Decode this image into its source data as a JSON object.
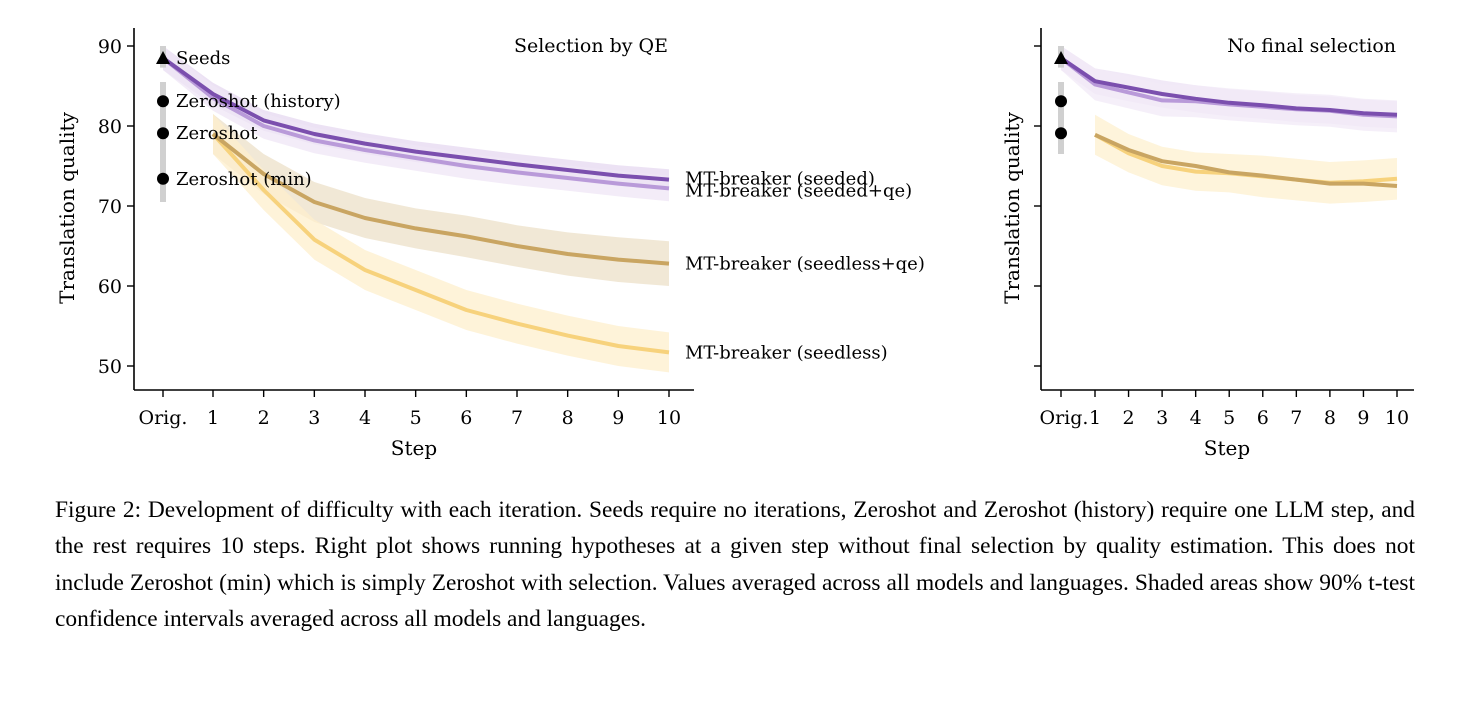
{
  "chart_data": [
    {
      "type": "line",
      "panel": "left",
      "title": "Selection by QE",
      "xlabel": "Step",
      "ylabel": "Translation quality",
      "x": [
        "Orig.",
        "1",
        "2",
        "3",
        "4",
        "5",
        "6",
        "7",
        "8",
        "9",
        "10"
      ],
      "yticks": [
        50,
        60,
        70,
        80,
        90
      ],
      "ylim": [
        47,
        92
      ],
      "grid": false,
      "reference_points": [
        {
          "name": "Seeds",
          "marker": "triangle",
          "value": 88.5,
          "ci": [
            87.3,
            90.0
          ]
        },
        {
          "name": "Zeroshot (history)",
          "marker": "circle",
          "value": 83.1,
          "ci": [
            81.0,
            85.5
          ]
        },
        {
          "name": "Zeroshot",
          "marker": "circle",
          "value": 79.1,
          "ci": [
            76.5,
            81.0
          ]
        },
        {
          "name": "Zeroshot (min)",
          "marker": "circle",
          "value": 73.4,
          "ci": [
            70.5,
            77.0
          ]
        }
      ],
      "series": [
        {
          "name": "MT-breaker (seeded)",
          "color": "#7b4fae",
          "band_color": "#e6d8f0",
          "x": [
            "Orig.",
            "1",
            "2",
            "3",
            "4",
            "5",
            "6",
            "7",
            "8",
            "9",
            "10"
          ],
          "values": [
            88.5,
            84.0,
            80.7,
            79.0,
            77.8,
            76.8,
            76.0,
            75.2,
            74.5,
            73.8,
            73.3
          ],
          "ci_halfwidth": [
            1.5,
            1.4,
            1.3,
            1.3,
            1.3,
            1.3,
            1.3,
            1.3,
            1.3,
            1.3,
            1.3
          ]
        },
        {
          "name": "MT-breaker (seeded+qe)",
          "color": "#b99ad9",
          "band_color": "#efe6f6",
          "x": [
            "Orig.",
            "1",
            "2",
            "3",
            "4",
            "5",
            "6",
            "7",
            "8",
            "9",
            "10"
          ],
          "values": [
            88.5,
            83.5,
            80.0,
            78.2,
            77.0,
            76.0,
            75.0,
            74.2,
            73.5,
            72.8,
            72.2
          ],
          "ci_halfwidth": [
            1.5,
            1.6,
            1.6,
            1.6,
            1.6,
            1.6,
            1.6,
            1.6,
            1.6,
            1.6,
            1.6
          ]
        },
        {
          "name": "MT-breaker (seedless+qe)",
          "color": "#c9a562",
          "band_color": "#ece0c8",
          "x": [
            "1",
            "2",
            "3",
            "4",
            "5",
            "6",
            "7",
            "8",
            "9",
            "10"
          ],
          "values": [
            79.0,
            74.0,
            70.5,
            68.5,
            67.2,
            66.2,
            65.0,
            64.0,
            63.3,
            62.8
          ],
          "ci_halfwidth": [
            2.5,
            2.5,
            2.5,
            2.5,
            2.5,
            2.6,
            2.6,
            2.7,
            2.8,
            2.8
          ]
        },
        {
          "name": "MT-breaker (seedless)",
          "color": "#f7d27c",
          "band_color": "#fdefcc",
          "x": [
            "1",
            "2",
            "3",
            "4",
            "5",
            "6",
            "7",
            "8",
            "9",
            "10"
          ],
          "values": [
            79.0,
            72.0,
            65.8,
            62.0,
            59.5,
            57.0,
            55.3,
            53.8,
            52.5,
            51.7
          ],
          "ci_halfwidth": [
            2.5,
            2.5,
            2.5,
            2.5,
            2.5,
            2.5,
            2.5,
            2.5,
            2.5,
            2.5
          ]
        }
      ]
    },
    {
      "type": "line",
      "panel": "right",
      "title": "No final selection",
      "xlabel": "Step",
      "ylabel": "Translation quality",
      "x": [
        "Orig.",
        "1",
        "2",
        "3",
        "4",
        "5",
        "6",
        "7",
        "8",
        "9",
        "10"
      ],
      "yticks": [
        50,
        60,
        70,
        80,
        90
      ],
      "yticks_labeled": false,
      "ylim": [
        47,
        92
      ],
      "grid": false,
      "reference_points": [
        {
          "name": "Seeds",
          "marker": "triangle",
          "value": 88.5,
          "ci": [
            87.3,
            90.0
          ]
        },
        {
          "name": "Zeroshot (history)",
          "marker": "circle",
          "value": 83.1,
          "ci": [
            81.0,
            85.5
          ]
        },
        {
          "name": "Zeroshot",
          "marker": "circle",
          "value": 79.1,
          "ci": [
            76.5,
            81.0
          ]
        }
      ],
      "series": [
        {
          "name": "MT-breaker (seeded)",
          "color": "#7b4fae",
          "band_color": "#ece1f4",
          "x": [
            "Orig.",
            "1",
            "2",
            "3",
            "4",
            "5",
            "6",
            "7",
            "8",
            "9",
            "10"
          ],
          "values": [
            88.5,
            85.6,
            84.8,
            84.0,
            83.4,
            82.9,
            82.6,
            82.2,
            82.0,
            81.6,
            81.4
          ],
          "ci_halfwidth": [
            1.5,
            1.6,
            1.7,
            1.7,
            1.7,
            1.7,
            1.7,
            1.7,
            1.7,
            1.7,
            1.7
          ]
        },
        {
          "name": "MT-breaker (seeded+qe)",
          "color": "#b99ad9",
          "band_color": "#f1e9f7",
          "x": [
            "Orig.",
            "1",
            "2",
            "3",
            "4",
            "5",
            "6",
            "7",
            "8",
            "9",
            "10"
          ],
          "values": [
            88.5,
            85.2,
            84.2,
            83.2,
            83.1,
            82.7,
            82.4,
            82.1,
            81.9,
            81.4,
            81.2
          ],
          "ci_halfwidth": [
            1.5,
            2.0,
            2.0,
            2.0,
            2.0,
            2.0,
            2.0,
            2.0,
            2.0,
            2.0,
            2.0
          ]
        },
        {
          "name": "MT-breaker (seedless)",
          "color": "#f7d27c",
          "band_color": "#fdf0cf",
          "x": [
            "1",
            "2",
            "3",
            "4",
            "5",
            "6",
            "7",
            "8",
            "9",
            "10"
          ],
          "values": [
            78.9,
            76.6,
            75.0,
            74.3,
            74.1,
            73.7,
            73.3,
            72.9,
            73.1,
            73.4
          ],
          "ci_halfwidth": [
            2.5,
            2.4,
            2.4,
            2.4,
            2.4,
            2.6,
            2.6,
            2.6,
            2.6,
            2.6
          ]
        },
        {
          "name": "MT-breaker (seedless+qe)",
          "color": "#c9a562",
          "band_color": "#fdf0cf",
          "x": [
            "1",
            "2",
            "3",
            "4",
            "5",
            "6",
            "7",
            "8",
            "9",
            "10"
          ],
          "values": [
            78.9,
            77.0,
            75.6,
            75.0,
            74.2,
            73.8,
            73.3,
            72.8,
            72.8,
            72.5
          ],
          "ci_halfwidth": [
            0,
            0,
            0,
            0,
            0,
            0,
            0,
            0,
            0,
            0
          ]
        }
      ]
    }
  ],
  "caption": "Figure 2: Development of difficulty with each iteration. Seeds require no iterations, Zeroshot and Zeroshot (history) require one LLM step, and the rest requires 10 steps. Right plot shows running hypotheses at a given step without final selection by quality estimation. This does not include Zeroshot (min) which is simply Zeroshot with selection. Values averaged across all models and languages. Shaded areas show 90% t-test confidence intervals averaged across all models and languages."
}
